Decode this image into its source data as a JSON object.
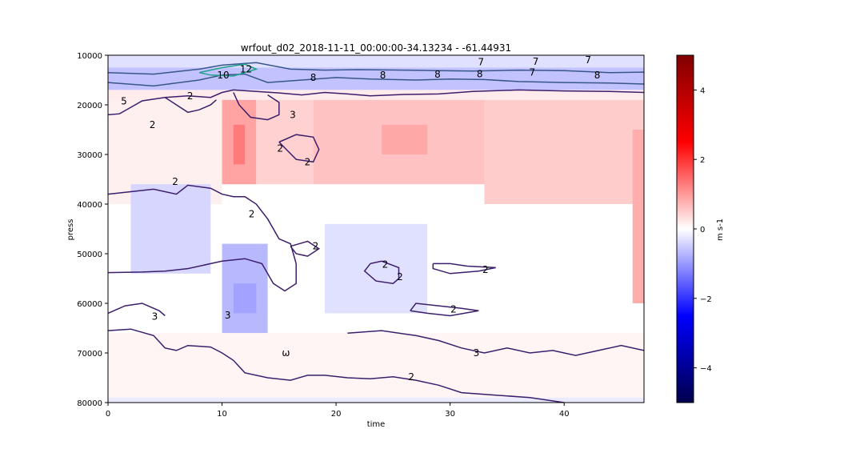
{
  "chart_data": {
    "type": "heatmap",
    "title": "wrfout_d02_2018-11-11_00:00:00-34.13234 - -61.44931",
    "xlabel": "time",
    "ylabel": "press",
    "xlim": [
      0,
      47
    ],
    "ylim": [
      80000,
      10000
    ],
    "x_ticks": [
      0,
      10,
      20,
      30,
      40
    ],
    "y_ticks": [
      10000,
      20000,
      30000,
      40000,
      50000,
      60000,
      70000,
      80000
    ],
    "colorbar": {
      "label": "m s-1",
      "range": [
        -5,
        5
      ],
      "ticks": [
        4,
        2,
        0,
        -2,
        -4
      ],
      "tick_labels": [
        "4",
        "2",
        "0",
        "−2",
        "−4"
      ],
      "colors": [
        "#00004c",
        "#0000ff",
        "#ffffff",
        "#ff0000",
        "#800000"
      ]
    },
    "heatmap_cells": [
      {
        "t0": 0,
        "t1": 47,
        "p0": 10000,
        "p1": 12500,
        "v": -0.3
      },
      {
        "t0": 0,
        "t1": 47,
        "p0": 12500,
        "p1": 17000,
        "v": -0.6
      },
      {
        "t0": 0,
        "t1": 47,
        "p0": 17000,
        "p1": 19000,
        "v": 0.2
      },
      {
        "t0": 0,
        "t1": 10,
        "p0": 19000,
        "p1": 40000,
        "v": 0.15
      },
      {
        "t0": 10,
        "t1": 13,
        "p0": 19000,
        "p1": 36000,
        "v": 0.9
      },
      {
        "t0": 11,
        "t1": 12,
        "p0": 24000,
        "p1": 32000,
        "v": 1.3
      },
      {
        "t0": 13,
        "t1": 18,
        "p0": 19000,
        "p1": 36000,
        "v": 0.45
      },
      {
        "t0": 18,
        "t1": 33,
        "p0": 19000,
        "p1": 36000,
        "v": 0.6
      },
      {
        "t0": 24,
        "t1": 28,
        "p0": 24000,
        "p1": 30000,
        "v": 0.85
      },
      {
        "t0": 33,
        "t1": 47,
        "p0": 19000,
        "p1": 40000,
        "v": 0.5
      },
      {
        "t0": 46,
        "t1": 47,
        "p0": 25000,
        "p1": 60000,
        "v": 0.8
      },
      {
        "t0": 2,
        "t1": 9,
        "p0": 36000,
        "p1": 54000,
        "v": -0.4
      },
      {
        "t0": 10,
        "t1": 14,
        "p0": 48000,
        "p1": 66000,
        "v": -0.7
      },
      {
        "t0": 11,
        "t1": 13,
        "p0": 56000,
        "p1": 62000,
        "v": -0.9
      },
      {
        "t0": 19,
        "t1": 28,
        "p0": 44000,
        "p1": 62000,
        "v": -0.3
      },
      {
        "t0": 0,
        "t1": 47,
        "p0": 66000,
        "p1": 80000,
        "v": 0.1
      },
      {
        "t0": 0,
        "t1": 47,
        "p0": 79000,
        "p1": 80000,
        "v": -0.2
      }
    ],
    "contours": [
      {
        "label": "2",
        "points": [
          [
            0,
            22000
          ],
          [
            1,
            21800
          ],
          [
            2,
            20500
          ],
          [
            3,
            19200
          ],
          [
            5,
            18500
          ],
          [
            7,
            18200
          ],
          [
            9,
            18500
          ],
          [
            10,
            17500
          ],
          [
            11,
            17000
          ],
          [
            13,
            17300
          ],
          [
            15,
            17600
          ],
          [
            17,
            18000
          ],
          [
            19,
            17500
          ],
          [
            21,
            17800
          ],
          [
            23,
            18200
          ],
          [
            26,
            17900
          ],
          [
            29,
            17800
          ],
          [
            32,
            17300
          ],
          [
            36,
            17000
          ],
          [
            40,
            17200
          ],
          [
            44,
            17300
          ],
          [
            47,
            17500
          ]
        ]
      },
      {
        "label": "2",
        "points": [
          [
            5,
            18500
          ],
          [
            6,
            20000
          ],
          [
            7,
            21500
          ],
          [
            8,
            21000
          ],
          [
            9,
            20000
          ],
          [
            9.5,
            19000
          ]
        ]
      },
      {
        "label": "3",
        "points": [
          [
            11,
            17500
          ],
          [
            11.5,
            20000
          ],
          [
            12.5,
            22500
          ],
          [
            14,
            23000
          ],
          [
            15,
            22000
          ],
          [
            15,
            19500
          ],
          [
            14,
            18000
          ]
        ]
      },
      {
        "label": "2",
        "points": [
          [
            15,
            27500
          ],
          [
            16.5,
            31000
          ],
          [
            18,
            31500
          ],
          [
            18.5,
            29000
          ],
          [
            18,
            26500
          ],
          [
            16.5,
            26000
          ],
          [
            15,
            27500
          ]
        ]
      },
      {
        "label": "2",
        "points": [
          [
            0,
            38000
          ],
          [
            2,
            37500
          ],
          [
            4,
            37000
          ],
          [
            6,
            38000
          ],
          [
            7,
            36200
          ],
          [
            9,
            36800
          ],
          [
            10,
            38000
          ],
          [
            11,
            38500
          ],
          [
            12,
            38500
          ],
          [
            13,
            40000
          ],
          [
            14,
            43000
          ],
          [
            15,
            47000
          ],
          [
            16,
            48000
          ],
          [
            16.5,
            52000
          ],
          [
            16.5,
            56000
          ],
          [
            15.5,
            57500
          ],
          [
            14.5,
            56000
          ],
          [
            13.5,
            52000
          ],
          [
            12,
            51000
          ],
          [
            10,
            51500
          ],
          [
            9,
            52000
          ],
          [
            7,
            53000
          ],
          [
            5,
            53500
          ],
          [
            3,
            53700
          ],
          [
            0,
            53800
          ]
        ]
      },
      {
        "label": "2",
        "points": [
          [
            16,
            48500
          ],
          [
            17.5,
            47500
          ],
          [
            18.5,
            49000
          ],
          [
            17.5,
            50500
          ],
          [
            16.5,
            50000
          ],
          [
            16,
            48500
          ]
        ]
      },
      {
        "label": "2",
        "points": [
          [
            23,
            52000
          ],
          [
            24,
            51500
          ],
          [
            25.5,
            52800
          ],
          [
            25.5,
            55000
          ],
          [
            25,
            56000
          ],
          [
            23.5,
            55500
          ],
          [
            22.5,
            53500
          ],
          [
            23,
            52000
          ]
        ]
      },
      {
        "label": "2",
        "points": [
          [
            28.5,
            52000
          ],
          [
            30,
            52000
          ],
          [
            31.5,
            52500
          ],
          [
            34,
            52800
          ],
          [
            32.5,
            53500
          ],
          [
            30,
            54000
          ],
          [
            28.5,
            53000
          ],
          [
            28.5,
            52000
          ]
        ]
      },
      {
        "label": "3",
        "points": [
          [
            0,
            62000
          ],
          [
            1.5,
            60500
          ],
          [
            3,
            60000
          ],
          [
            4.5,
            61500
          ],
          [
            5,
            62500
          ]
        ]
      },
      {
        "label": "2",
        "points": [
          [
            26.5,
            61500
          ],
          [
            27,
            60000
          ],
          [
            29,
            60500
          ],
          [
            31,
            61000
          ],
          [
            32.5,
            61500
          ],
          [
            30,
            62500
          ],
          [
            28,
            62000
          ],
          [
            26.5,
            61500
          ]
        ]
      },
      {
        "label": "3",
        "points": [
          [
            21,
            66000
          ],
          [
            24,
            65500
          ],
          [
            27,
            66500
          ],
          [
            29,
            67500
          ],
          [
            31,
            69000
          ],
          [
            33,
            70000
          ],
          [
            35,
            69000
          ],
          [
            37,
            70000
          ],
          [
            39,
            69500
          ],
          [
            41,
            70500
          ],
          [
            43,
            69500
          ],
          [
            45,
            68500
          ],
          [
            47,
            69500
          ]
        ]
      },
      {
        "label": "2",
        "points": [
          [
            0,
            65500
          ],
          [
            2,
            65200
          ],
          [
            4,
            66500
          ],
          [
            5,
            69000
          ],
          [
            6,
            69500
          ],
          [
            7,
            68500
          ],
          [
            9,
            68800
          ],
          [
            10,
            70000
          ],
          [
            11,
            71500
          ],
          [
            12,
            74000
          ],
          [
            14,
            75000
          ],
          [
            16,
            75500
          ],
          [
            17.5,
            74500
          ],
          [
            19,
            74500
          ],
          [
            21,
            75000
          ],
          [
            23,
            75200
          ],
          [
            25,
            74800
          ],
          [
            27,
            75500
          ],
          [
            29,
            76500
          ],
          [
            31,
            78000
          ],
          [
            34,
            78500
          ],
          [
            37,
            79000
          ],
          [
            40,
            80000
          ]
        ]
      },
      {
        "label": "8",
        "points": [
          [
            0,
            13500
          ],
          [
            4,
            13800
          ],
          [
            8,
            12800
          ],
          [
            10,
            12000
          ],
          [
            13,
            11500
          ],
          [
            16,
            12800
          ],
          [
            19,
            13000
          ],
          [
            22,
            12900
          ],
          [
            26,
            13000
          ],
          [
            29,
            13100
          ],
          [
            32,
            13200
          ],
          [
            36,
            13000
          ],
          [
            40,
            13100
          ],
          [
            44,
            13500
          ],
          [
            47,
            13400
          ]
        ]
      },
      {
        "label": "7",
        "points": [
          [
            0,
            15500
          ],
          [
            4,
            16200
          ],
          [
            8,
            15000
          ],
          [
            10,
            14000
          ],
          [
            12,
            13800
          ],
          [
            14,
            15500
          ],
          [
            17,
            15000
          ],
          [
            20,
            14500
          ],
          [
            23,
            14800
          ],
          [
            27,
            15000
          ],
          [
            30,
            14800
          ],
          [
            33,
            14900
          ],
          [
            36,
            15300
          ],
          [
            40,
            15500
          ],
          [
            44,
            15600
          ],
          [
            47,
            15800
          ]
        ]
      },
      {
        "label": "12",
        "points": [
          [
            8,
            13500
          ],
          [
            10,
            12500
          ],
          [
            12,
            11800
          ],
          [
            13,
            12800
          ],
          [
            11,
            14200
          ],
          [
            9,
            14000
          ],
          [
            8,
            13500
          ]
        ]
      }
    ],
    "contour_labels": [
      "2",
      "2",
      "2",
      "2",
      "2",
      "2",
      "2",
      "2",
      "2",
      "2",
      "2",
      "2",
      "3",
      "3",
      "3",
      "3",
      "ω",
      "5",
      "7",
      "7",
      "7",
      "7",
      "8",
      "8",
      "8",
      "8",
      "8",
      "12",
      "10"
    ]
  }
}
